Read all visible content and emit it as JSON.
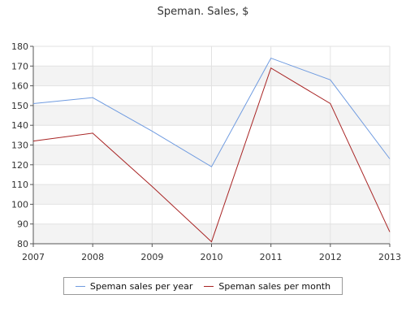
{
  "chart_data": {
    "type": "line",
    "title": "Speman. Sales, $",
    "x": [
      "2007",
      "2008",
      "2009",
      "2010",
      "2011",
      "2012",
      "2013"
    ],
    "ylim": [
      80,
      180
    ],
    "yticks": [
      80,
      90,
      100,
      110,
      120,
      130,
      140,
      150,
      160,
      170,
      180
    ],
    "grid": true,
    "legend_position": "bottom",
    "series": [
      {
        "name": "Speman sales per year",
        "color": "#6f9be0",
        "values": [
          151,
          154,
          137,
          119,
          174,
          163,
          123
        ]
      },
      {
        "name": "Speman sales per month",
        "color": "#a82424",
        "values": [
          132,
          136,
          109,
          81,
          169,
          151,
          86
        ]
      }
    ]
  }
}
